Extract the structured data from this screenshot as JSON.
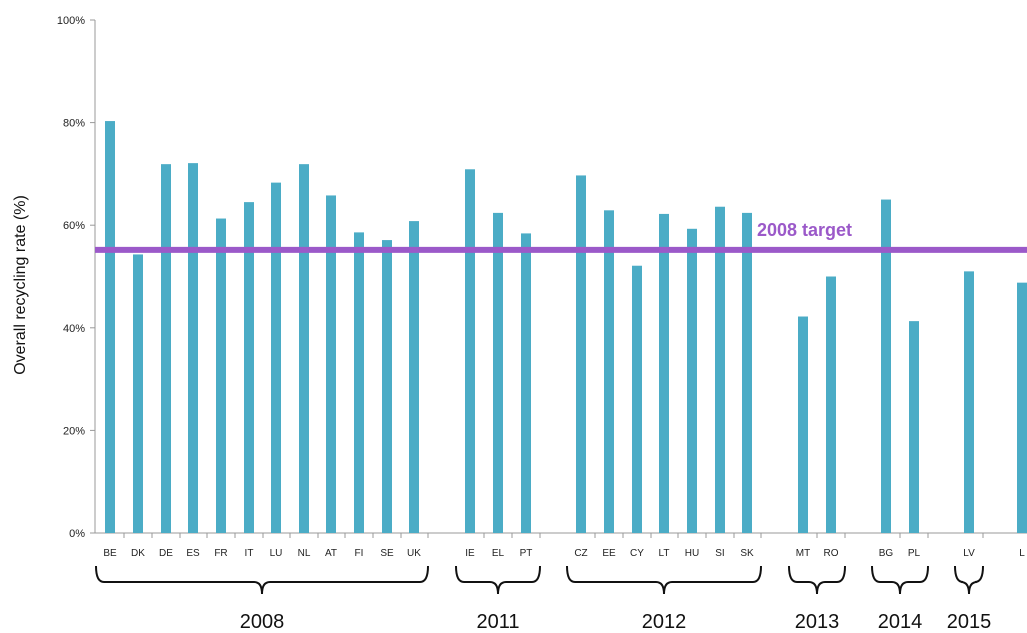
{
  "chart_data": {
    "type": "bar",
    "title": "",
    "xlabel": "",
    "ylabel": "Overall recycling rate (%)",
    "ylim": [
      0,
      100
    ],
    "yticks": [
      "0%",
      "20%",
      "40%",
      "60%",
      "80%",
      "100%"
    ],
    "categories": [
      "BE",
      "DK",
      "DE",
      "ES",
      "FR",
      "IT",
      "LU",
      "NL",
      "AT",
      "FI",
      "SE",
      "UK",
      "IE",
      "EL",
      "PT",
      "CZ",
      "EE",
      "CY",
      "LT",
      "HU",
      "SI",
      "SK",
      "MT",
      "RO",
      "BG",
      "PL",
      "LV",
      "L"
    ],
    "values": [
      80.3,
      54.3,
      71.9,
      72.1,
      61.3,
      64.5,
      68.3,
      71.9,
      65.8,
      58.6,
      57.1,
      60.8,
      70.9,
      62.4,
      58.4,
      69.7,
      62.9,
      52.1,
      62.2,
      59.3,
      63.6,
      62.4,
      42.2,
      50.0,
      65.0,
      41.3,
      51.0,
      48.8
    ],
    "groups": [
      {
        "label": "2008",
        "count": 12
      },
      {
        "label": "2011",
        "count": 3
      },
      {
        "label": "2012",
        "count": 7
      },
      {
        "label": "2013",
        "count": 2
      },
      {
        "label": "2014",
        "count": 2
      },
      {
        "label": "2015",
        "count": 1
      }
    ],
    "target": {
      "label": "2008 target",
      "value": 55.2
    },
    "colors": {
      "bar": "#4bacc6",
      "target": "#9b59c9"
    }
  }
}
